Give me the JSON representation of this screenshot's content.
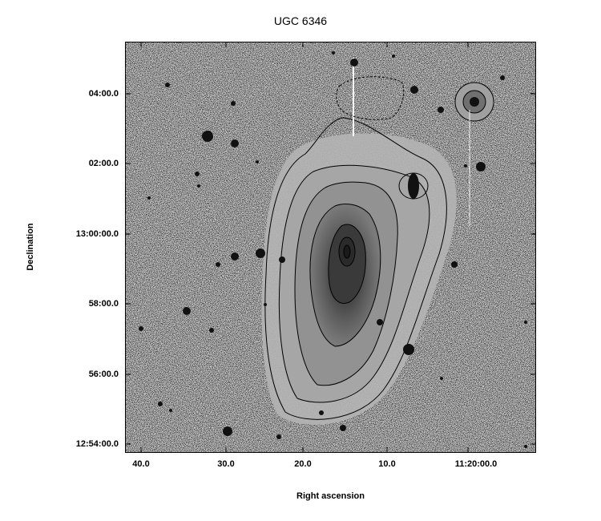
{
  "title": "UGC 6346",
  "xlabel": "Right ascension",
  "ylabel": "Declination",
  "y_ticks": [
    "04:00.0",
    "02:00.0",
    "13:00:00.0",
    "58:00.0",
    "56:00.0",
    "12:54:00.0"
  ],
  "x_ticks": [
    "40.0",
    "30.0",
    "20.0",
    "10.0",
    "11:20:00.0"
  ],
  "colors": {
    "background": "#ffffff",
    "sky": "#d8d8d8",
    "galaxy_core": "#303030",
    "contour": "#000000"
  }
}
